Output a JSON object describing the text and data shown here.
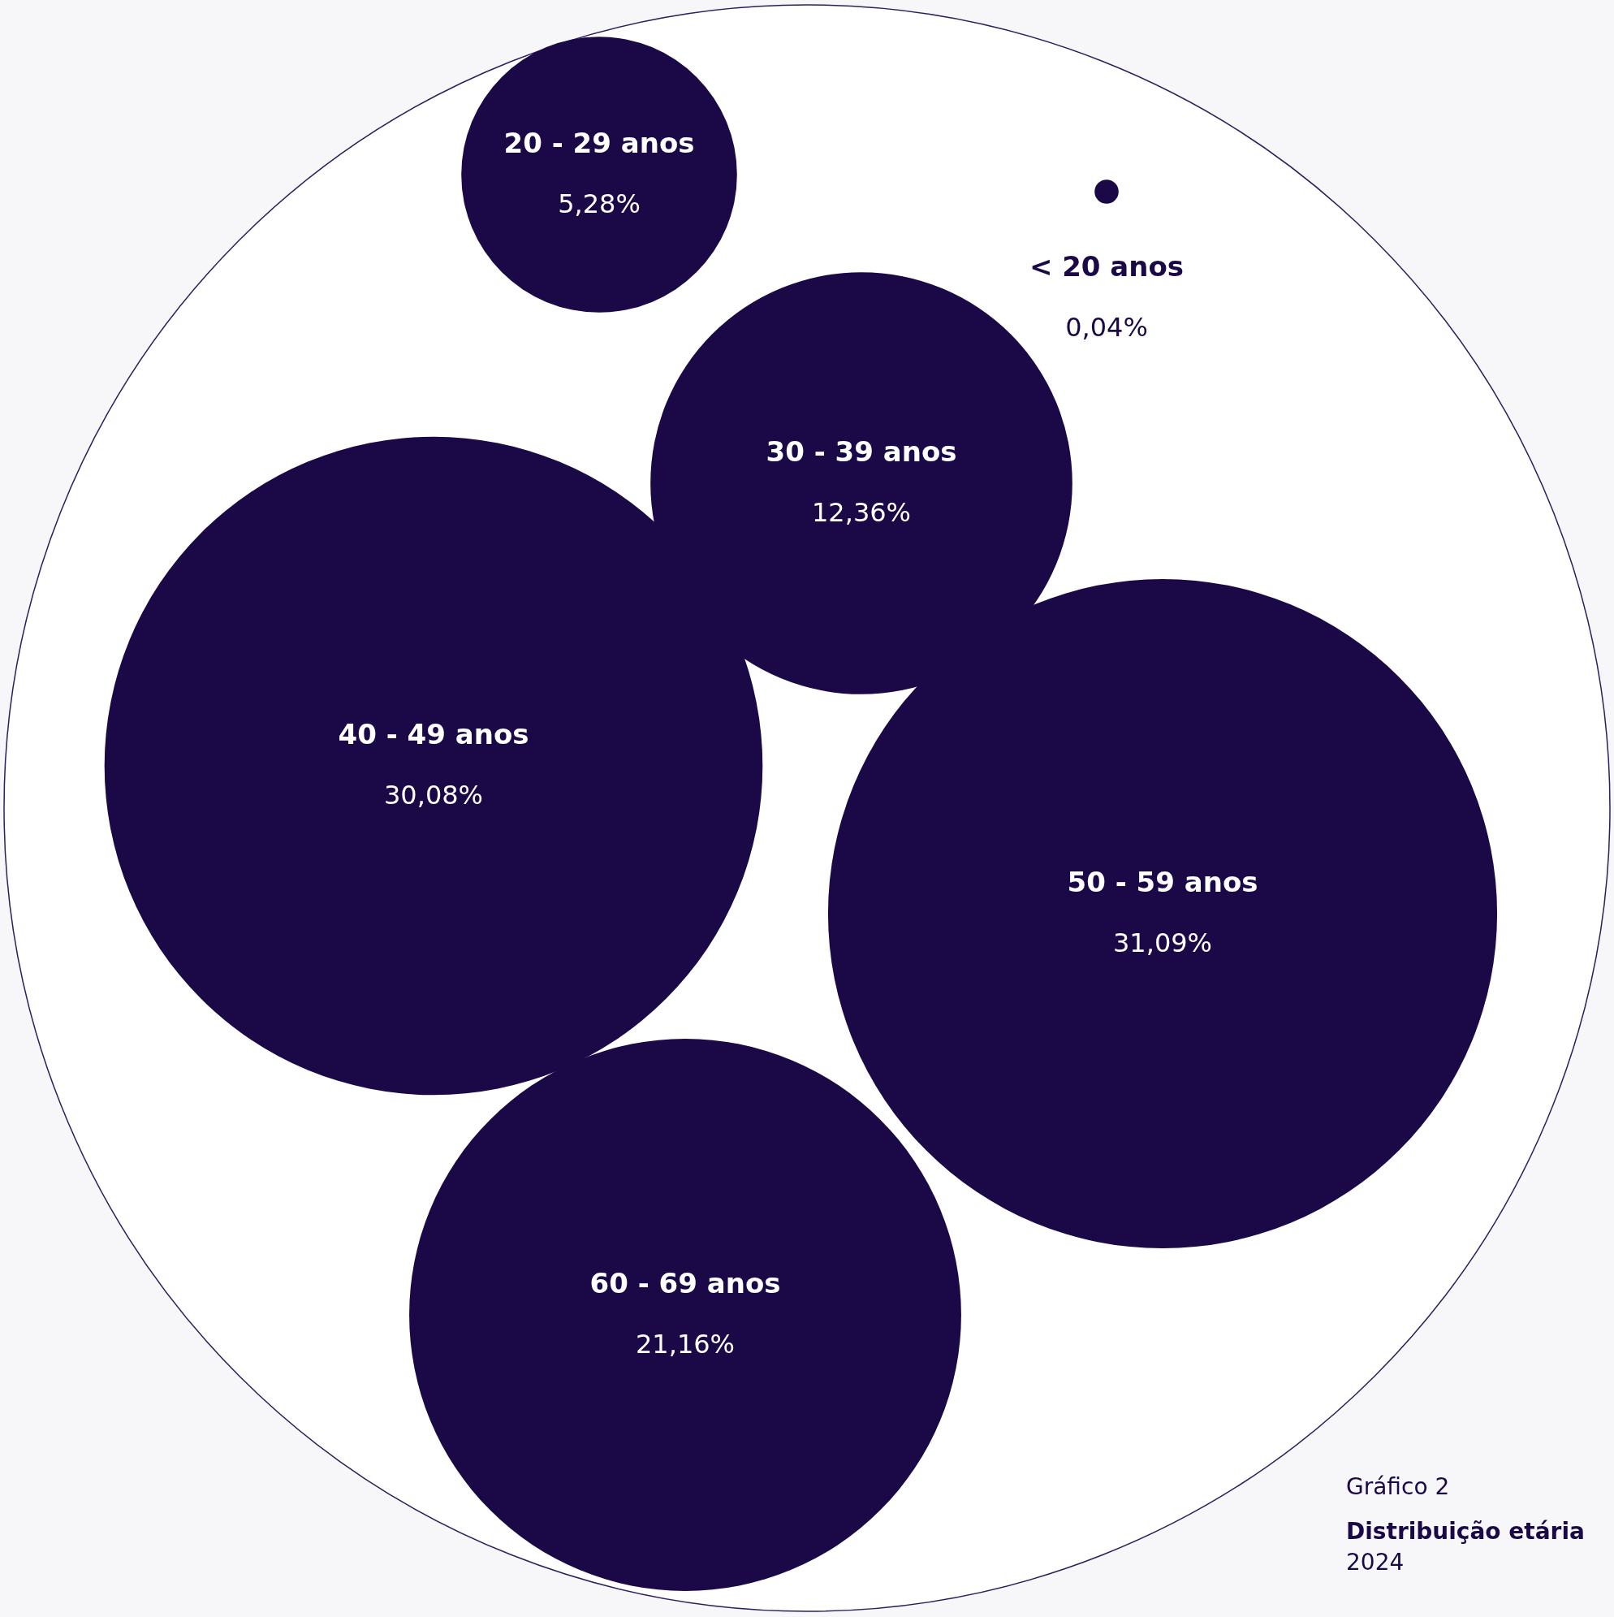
{
  "chart_data": {
    "type": "other",
    "title": "Distribuição etária",
    "subtitle": "2024",
    "annotations": [
      "Gráfico 2"
    ],
    "categories": [
      "20 - 29 anos",
      "< 20 anos",
      "30 - 39 anos",
      "40 - 49 anos",
      "50 - 59 anos",
      "60 - 69 anos"
    ],
    "values": [
      5.28,
      0.04,
      12.36,
      30.08,
      31.09,
      21.16
    ],
    "value_labels": [
      "5,28%",
      "0,04%",
      "12,36%",
      "30,08%",
      "31,09%",
      "21,16%"
    ],
    "colors": [
      "#1b0947",
      "#1b0947",
      "#1b0947",
      "#1b0947",
      "#1b0947",
      "#1b0947"
    ]
  }
}
